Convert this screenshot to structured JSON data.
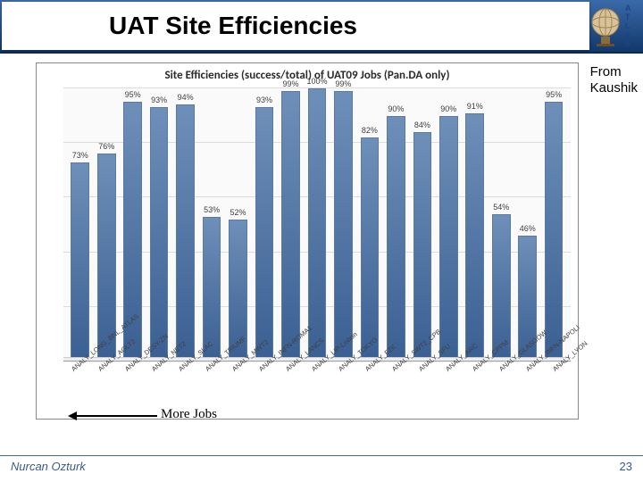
{
  "header": {
    "title": "UAT Site Efficiencies",
    "atlas_letters": [
      "A",
      "T",
      "L",
      "A",
      "S"
    ]
  },
  "note": {
    "line1": "From",
    "line2": "Kaushik"
  },
  "chart": {
    "type": "bar",
    "title": "Site Efficiencies (success/total) of UAT09 Jobs (Pan.DA only)",
    "ylim": [
      0,
      100
    ],
    "ytick_step": 20,
    "grid_color": "#dcdcdc",
    "background_color": "#fafafa",
    "bar_color": "#4a6fa0",
    "bar_width": 0.7,
    "label_fontsize": 9,
    "title_fontsize": 13,
    "categories": [
      "ANALY_LONG_BNL_ATLAS",
      "ANALY_AGLT2",
      "ANALY_DESY-ZN",
      "ANALY_NET2",
      "ANALY_SLAC",
      "ANALY_TRIUMF",
      "ANALY_MWT2",
      "ANALY_INFN-ROMA1",
      "ANALY_LANCS",
      "ANALY_LIP-Lisbon",
      "ANALY_TOKYO",
      "ANALY_FZK",
      "ANALY_SWT2_CPB",
      "ANALY_SFU",
      "ANALY_ARC",
      "ANALY_CPPM",
      "ANALY_GLASGOW",
      "ANALY_INFN-NAPOLI",
      "ANALY_LYON"
    ],
    "values": [
      73,
      76,
      95,
      93,
      94,
      53,
      52,
      93,
      99,
      100,
      99,
      82,
      90,
      84,
      90,
      91,
      54,
      46,
      95
    ],
    "value_labels": [
      "73%",
      "76%",
      "95%",
      "93%",
      "94%",
      "53%",
      "52%",
      "93%",
      "99%",
      "100%",
      "99%",
      "82%",
      "90%",
      "84%",
      "90%",
      "91%",
      "54%",
      "46%",
      "95%"
    ]
  },
  "more_jobs_label": "More Jobs",
  "footer": {
    "author": "Nurcan Ozturk",
    "page": "23"
  }
}
